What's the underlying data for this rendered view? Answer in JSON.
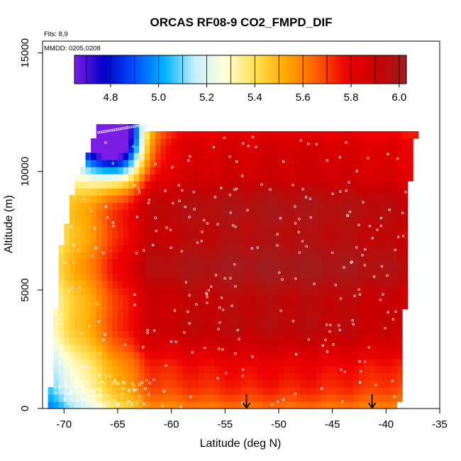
{
  "chart_data": {
    "type": "heatmap",
    "title": "ORCAS RF08-9 CO2_FMPD_DIF",
    "annotations": {
      "flights": "Flts: 8,9",
      "dates": "MMDD: 0205,0208"
    },
    "xlabel": "Latitude (deg N)",
    "ylabel": "Altitude (m)",
    "xlim": [
      -72,
      -35
    ],
    "ylim": [
      0,
      15500
    ],
    "x_ticks": [
      -70,
      -65,
      -60,
      -55,
      -50,
      -45,
      -40,
      -35
    ],
    "x_tick_labels": [
      "-70",
      "-65",
      "-60",
      "-55",
      "-50",
      "-45",
      "-40",
      "-35"
    ],
    "y_ticks": [
      0,
      5000,
      10000,
      15000
    ],
    "y_tick_labels": [
      "0",
      "5000",
      "10000",
      "15000"
    ],
    "colorbar": {
      "range": [
        4.65,
        6.03
      ],
      "ticks": [
        4.8,
        5.0,
        5.2,
        5.4,
        5.6,
        5.8,
        6.0
      ],
      "tick_labels": [
        "4.8",
        "5.0",
        "5.2",
        "5.4",
        "5.6",
        "5.8",
        "6.0"
      ],
      "colors": [
        "#7a1ee6",
        "#0000c8",
        "#0050ff",
        "#00b4ff",
        "#c8f0ff",
        "#ffffd8",
        "#ffe050",
        "#ffaa00",
        "#ff6000",
        "#ee0000",
        "#c80000",
        "#a01e1e"
      ]
    },
    "field_description": "CO2 values ~5.9-6.0 in mid troposphere core, decreasing to ~5.6-5.7 near surface and at high southern latitudes; minimum ~4.7-5.2 near 11500-12000 m at -67 to -64 deg",
    "markers": [
      {
        "latitude": -53.0,
        "altitude": 0,
        "symbol": "arrow-down"
      },
      {
        "latitude": -41.3,
        "altitude": 0,
        "symbol": "arrow-down"
      }
    ],
    "colors": {
      "sample_points": "#ffffff",
      "axis": "#000000"
    }
  }
}
